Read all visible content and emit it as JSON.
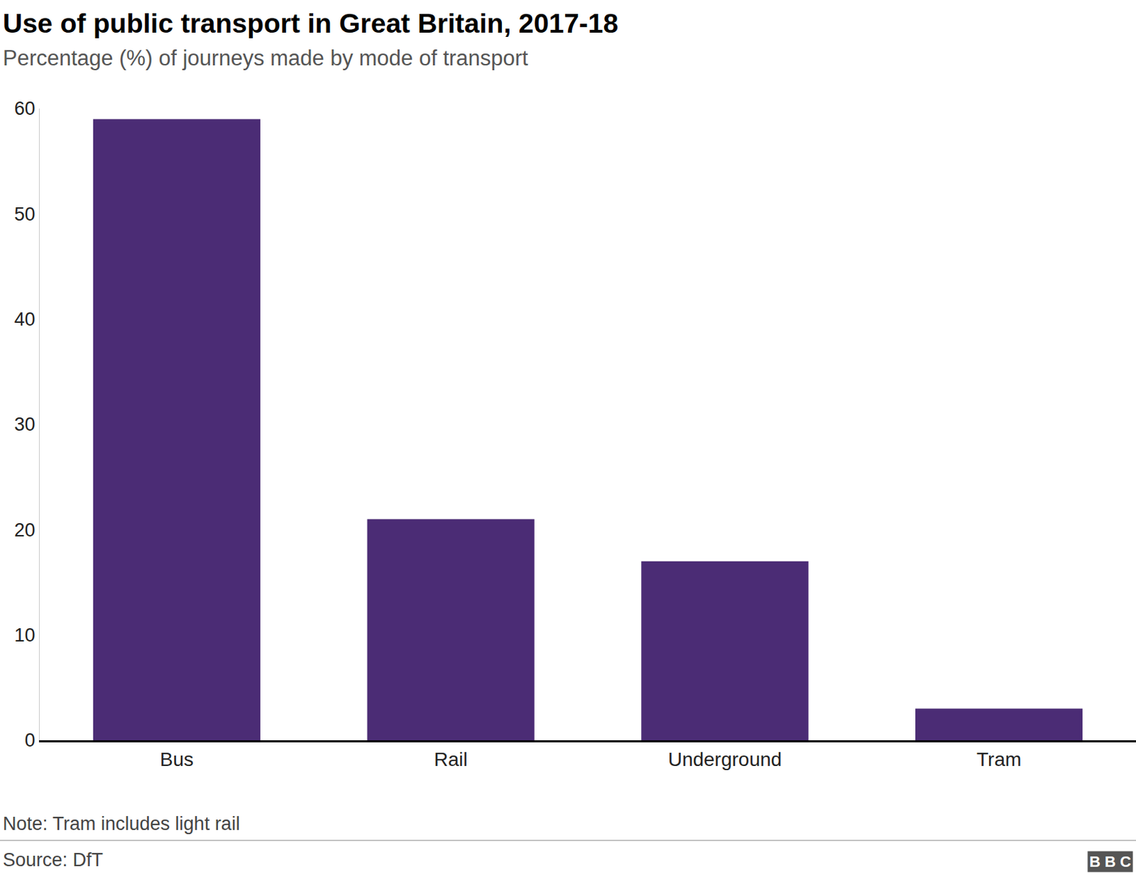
{
  "chart_data": {
    "type": "bar",
    "title": "Use of public transport in Great Britain, 2017-18",
    "subtitle": "Percentage (%) of journeys made by mode of transport",
    "categories": [
      "Bus",
      "Rail",
      "Underground",
      "Tram"
    ],
    "values": [
      59,
      21,
      17,
      3
    ],
    "color": "#4b2c75",
    "ylim": [
      0,
      60
    ],
    "yticks": [
      0,
      10,
      20,
      30,
      40,
      50,
      60
    ],
    "grid": false,
    "note": "Note: Tram includes light rail",
    "source": "Source: DfT",
    "logo": "BBC"
  }
}
